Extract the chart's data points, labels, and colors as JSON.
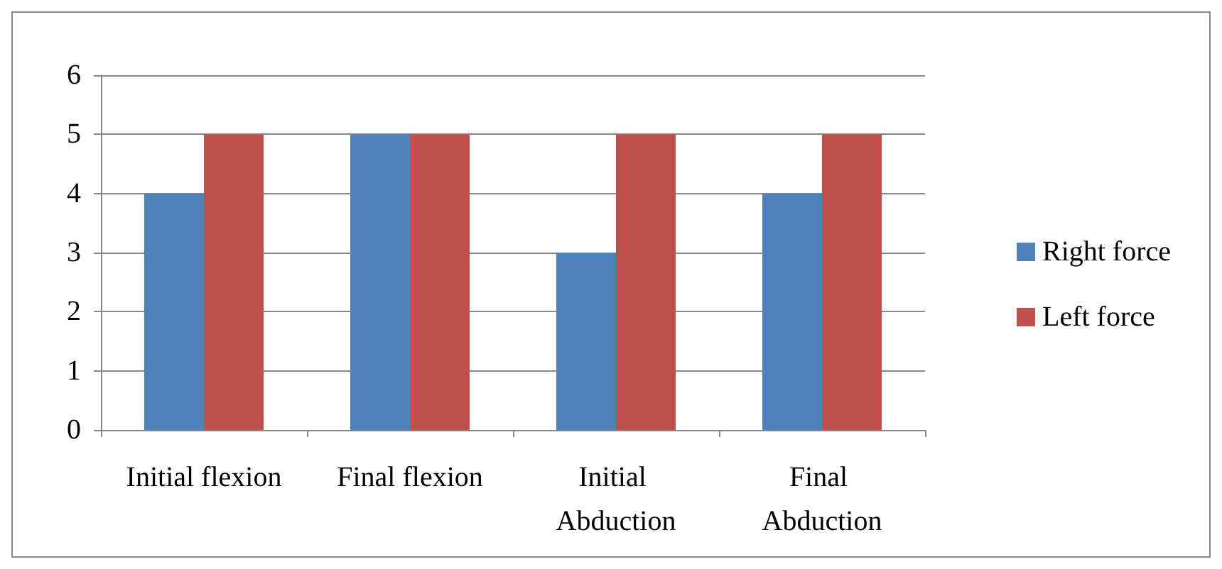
{
  "chart_data": {
    "type": "bar",
    "categories": [
      "Initial flexion",
      "Final flexion",
      "Initial Abduction",
      "Final Abduction"
    ],
    "series": [
      {
        "name": "Right force",
        "color": "#4f81bd",
        "values": [
          4,
          5,
          3,
          4
        ]
      },
      {
        "name": "Left force",
        "color": "#c0504d",
        "values": [
          5,
          5,
          5,
          5
        ]
      }
    ],
    "ylim": [
      0,
      6
    ],
    "yticks": [
      0,
      1,
      2,
      3,
      4,
      5,
      6
    ],
    "grid": "y",
    "legend": "right"
  }
}
